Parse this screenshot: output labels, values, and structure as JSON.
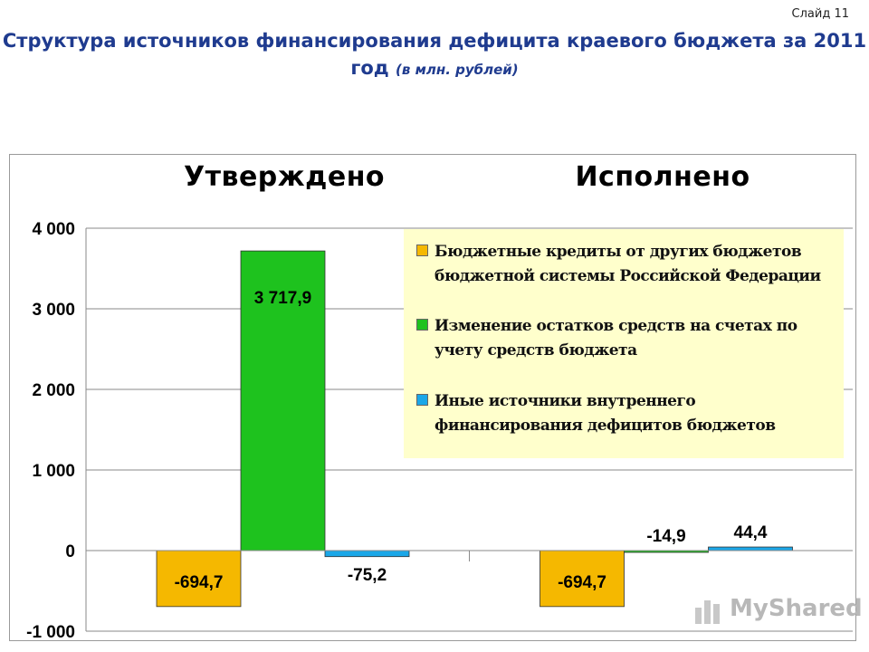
{
  "slide_label": "Слайд 11",
  "title_main": "Структура источников финансирования дефицита краевого бюджета за 2011 год",
  "title_unit": "(в млн. рублей)",
  "watermark": "MyShared",
  "chart_data": {
    "type": "bar",
    "categories": [
      "Утверждено",
      "Исполнено"
    ],
    "ylim": [
      -1000,
      4000
    ],
    "yticks": [
      4000,
      3000,
      2000,
      1000,
      0,
      -1000
    ],
    "ytick_labels": [
      "4 000",
      "3 000",
      "2 000",
      "1 000",
      "0",
      "-1 000"
    ],
    "grid": true,
    "legend_position": "top-right",
    "series": [
      {
        "name": "Бюджетные кредиты от других бюджетов бюджетной системы Российской Федерации",
        "color": "#f5b800",
        "values": [
          -694.7,
          -694.7
        ],
        "labels": [
          "-694,7",
          "-694,7"
        ]
      },
      {
        "name": "Изменение остатков средств на счетах по учету средств бюджета",
        "color": "#1ec21e",
        "values": [
          3717.9,
          -14.9
        ],
        "labels": [
          "3 717,9",
          "-14,9"
        ]
      },
      {
        "name": "Иные источники внутреннего финансирования дефицитов бюджетов",
        "color": "#1aa7e8",
        "values": [
          -75.2,
          44.4
        ],
        "labels": [
          "-75,2",
          "44,4"
        ]
      }
    ]
  }
}
